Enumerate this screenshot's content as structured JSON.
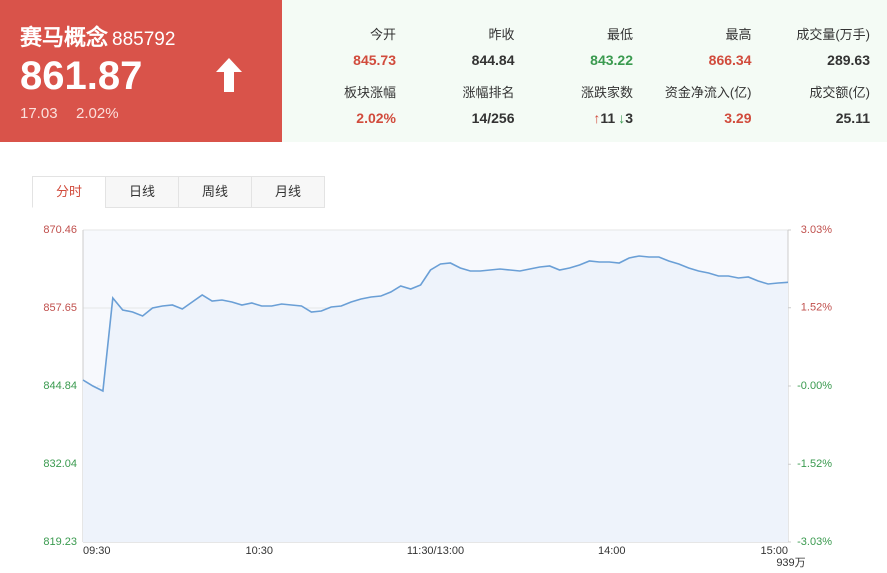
{
  "header": {
    "name": "赛马概念",
    "code": "885792",
    "price": "861.87",
    "change": "17.03",
    "change_pct": "2.02%"
  },
  "stats": [
    {
      "label": "今开",
      "value": "845.73",
      "color": "#d14b3c"
    },
    {
      "label": "昨收",
      "value": "844.84",
      "color": "#333333"
    },
    {
      "label": "最低",
      "value": "843.22",
      "color": "#3a9a4f"
    },
    {
      "label": "最高",
      "value": "866.34",
      "color": "#d14b3c"
    },
    {
      "label": "成交量(万手)",
      "value": "289.63",
      "color": "#333333"
    },
    {
      "label": "板块涨幅",
      "value": "2.02%",
      "color": "#d14b3c"
    },
    {
      "label": "涨幅排名",
      "value": "14/256",
      "color": "#333333"
    },
    {
      "label": "涨跌家数",
      "up": "11",
      "down": "3"
    },
    {
      "label": "资金净流入(亿)",
      "value": "3.29",
      "color": "#d14b3c"
    },
    {
      "label": "成交额(亿)",
      "value": "25.11",
      "color": "#333333"
    }
  ],
  "tabs": [
    "分时",
    "日线",
    "周线",
    "月线"
  ],
  "chart_data": {
    "type": "line",
    "x_labels": [
      "09:30",
      "10:30",
      "11:30/13:00",
      "14:00",
      "15:00"
    ],
    "series": [
      {
        "color": "#6a9fd6",
        "values": [
          845.83,
          844.84,
          844.02,
          859.29,
          857.32,
          857.0,
          856.34,
          857.65,
          857.98,
          858.15,
          857.49,
          858.64,
          859.79,
          858.8,
          858.97,
          858.64,
          858.15,
          858.47,
          857.98,
          857.98,
          858.31,
          858.15,
          857.98,
          857.0,
          857.16,
          857.82,
          857.98,
          858.64,
          859.13,
          859.46,
          859.62,
          860.28,
          861.27,
          860.77,
          861.43,
          863.89,
          864.88,
          865.04,
          864.22,
          863.73,
          863.73,
          863.89,
          864.06,
          863.89,
          863.73,
          864.06,
          864.38,
          864.55,
          863.89,
          864.22,
          864.71,
          865.37,
          865.21,
          865.21,
          865.04,
          865.86,
          866.19,
          866.03,
          866.03,
          865.37,
          864.88,
          864.22,
          863.73,
          863.4,
          862.91,
          862.91,
          862.58,
          862.74,
          862.09,
          861.59,
          861.76,
          861.87
        ]
      }
    ],
    "ylim": [
      819.23,
      870.46
    ],
    "yticks": [
      870.46,
      857.65,
      844.84,
      832.04,
      819.23
    ],
    "y2lim": [
      -3.03,
      3.03
    ],
    "y2ticks": [
      {
        "value": 3.03,
        "label": "3.03%"
      },
      {
        "value": 1.52,
        "label": "1.52%"
      },
      {
        "value": 0,
        "label": "-0.00%"
      },
      {
        "value": -1.52,
        "label": "-1.52%"
      },
      {
        "value": -3.03,
        "label": "-3.03%"
      }
    ],
    "up_color": "#c0504d",
    "down_color": "#3a9a4f",
    "grid": true,
    "volume_label": "939万"
  }
}
